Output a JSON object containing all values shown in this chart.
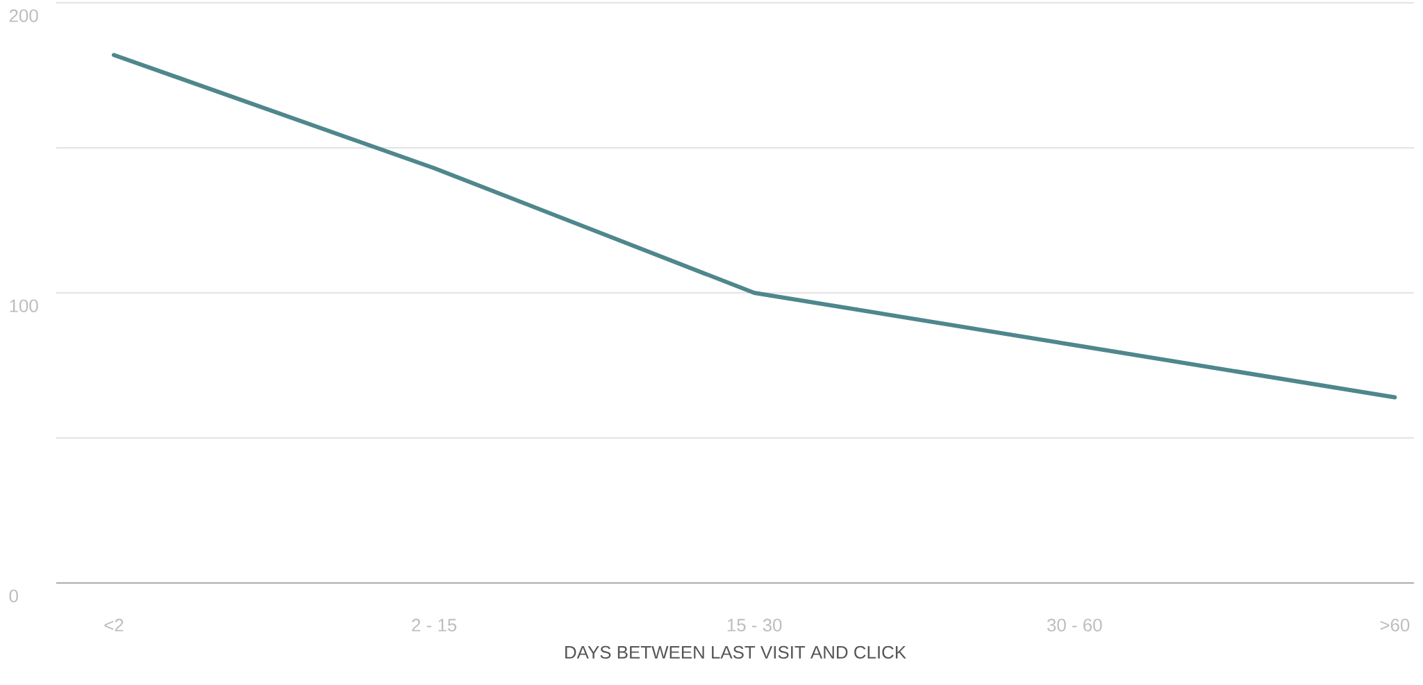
{
  "chart_data": {
    "type": "line",
    "xlabel": "DAYS BETWEEN LAST VISIT AND CLICK",
    "categories": [
      "<2",
      "2 - 15",
      "15 - 30",
      "30 - 60",
      ">60"
    ],
    "series": [
      {
        "color": "#4e878c",
        "values": [
          182,
          143,
          100,
          82,
          64
        ]
      }
    ],
    "ylim": [
      0,
      200
    ],
    "yticks": [
      0,
      {
        "value": 50,
        "label": null
      },
      100,
      {
        "value": 150,
        "label": null
      },
      200
    ],
    "grid": "y",
    "marker": "none",
    "line_style": "solid"
  }
}
